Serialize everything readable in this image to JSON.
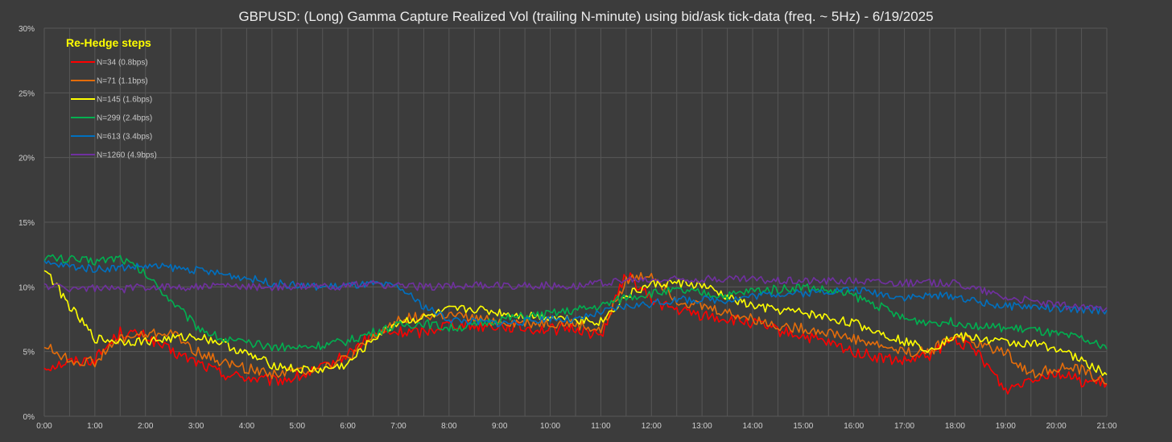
{
  "chart_data": {
    "type": "line",
    "title": "GBPUSD: (Long) Gamma Capture Realized Vol (trailing N-minute) using bid/ask tick-data (freq. ~ 5Hz) - 6/19/2025",
    "x_tick_labels": [
      "0:00",
      "1:00",
      "2:00",
      "3:00",
      "4:00",
      "5:00",
      "6:00",
      "7:00",
      "8:00",
      "9:00",
      "10:00",
      "11:00",
      "12:00",
      "13:00",
      "14:00",
      "15:00",
      "16:00",
      "17:00",
      "18:00",
      "19:00",
      "20:00",
      "21:00"
    ],
    "y_tick_labels": [
      "0%",
      "5%",
      "10%",
      "15%",
      "20%",
      "25%",
      "30%"
    ],
    "xlim": [
      0,
      21
    ],
    "ylim": [
      0,
      30
    ],
    "grid": true,
    "legend_title": "Re-Hedge steps",
    "legend_position": "top-left",
    "x_hours": [
      0,
      0.5,
      1,
      1.5,
      2,
      2.5,
      3,
      3.5,
      4,
      4.5,
      5,
      5.5,
      6,
      6.5,
      7,
      7.5,
      8,
      8.5,
      9,
      9.5,
      10,
      10.5,
      11,
      11.5,
      12,
      12.5,
      13,
      13.5,
      14,
      14.5,
      15,
      15.5,
      16,
      16.5,
      17,
      17.5,
      18,
      18.5,
      19,
      19.5,
      20,
      20.5,
      21
    ],
    "series": [
      {
        "name": "N=34 (0.8bps)",
        "color": "#ff0000",
        "values": [
          3.8,
          4.2,
          4.4,
          6.5,
          6.2,
          5.0,
          4.2,
          3.3,
          3.0,
          2.7,
          3.0,
          3.7,
          4.8,
          6.3,
          6.5,
          6.5,
          7.2,
          7.0,
          7.0,
          6.8,
          6.7,
          6.8,
          6.2,
          11.0,
          9.0,
          8.2,
          7.8,
          7.5,
          7.2,
          6.6,
          6.2,
          5.6,
          5.0,
          4.5,
          4.2,
          4.7,
          6.0,
          4.7,
          2.0,
          3.0,
          3.4,
          2.7,
          2.5
        ]
      },
      {
        "name": "N=71 (1.1bps)",
        "color": "#e46c0a",
        "values": [
          5.5,
          4.3,
          4.2,
          6.0,
          6.3,
          6.5,
          5.0,
          4.2,
          3.7,
          3.3,
          3.5,
          3.8,
          4.5,
          6.0,
          7.5,
          7.7,
          7.8,
          7.5,
          7.3,
          7.2,
          7.2,
          7.1,
          6.6,
          10.5,
          11.0,
          9.0,
          8.5,
          8.0,
          7.5,
          7.0,
          6.8,
          6.5,
          6.0,
          5.5,
          5.0,
          5.0,
          6.3,
          5.5,
          5.0,
          3.2,
          3.8,
          3.6,
          2.5
        ]
      },
      {
        "name": "N=145 (1.6bps)",
        "color": "#ffff00",
        "values": [
          11.5,
          8.5,
          6.0,
          5.8,
          5.8,
          6.0,
          6.2,
          5.7,
          4.8,
          4.0,
          3.6,
          3.6,
          4.0,
          6.0,
          7.3,
          7.6,
          8.2,
          8.3,
          8.0,
          7.8,
          7.7,
          7.5,
          7.3,
          9.3,
          10.2,
          10.3,
          10.1,
          9.2,
          8.5,
          8.2,
          8.0,
          7.6,
          7.2,
          6.5,
          5.8,
          5.2,
          6.2,
          6.0,
          5.7,
          5.6,
          5.3,
          4.3,
          3.2
        ]
      },
      {
        "name": "N=299 (2.4bps)",
        "color": "#00b050",
        "values": [
          12.3,
          12.1,
          12.0,
          12.3,
          11.0,
          9.0,
          7.0,
          6.0,
          5.6,
          5.4,
          5.3,
          5.5,
          5.8,
          6.5,
          7.0,
          7.2,
          6.8,
          7.0,
          7.5,
          7.7,
          7.9,
          8.2,
          8.5,
          9.2,
          9.5,
          9.7,
          9.5,
          9.3,
          9.7,
          9.8,
          10.0,
          9.7,
          9.3,
          8.5,
          7.5,
          7.3,
          7.3,
          7.0,
          6.8,
          6.7,
          6.3,
          6.0,
          5.2
        ]
      },
      {
        "name": "N=613 (3.4bps)",
        "color": "#0070c0",
        "values": [
          11.8,
          11.6,
          11.4,
          11.5,
          11.6,
          11.5,
          11.3,
          11.0,
          10.7,
          10.3,
          10.1,
          10.0,
          10.1,
          10.2,
          10.0,
          8.5,
          7.5,
          7.3,
          7.2,
          7.3,
          7.6,
          7.4,
          8.0,
          8.5,
          8.7,
          9.0,
          9.0,
          9.0,
          9.3,
          9.5,
          9.5,
          9.7,
          9.8,
          9.5,
          9.2,
          9.3,
          9.3,
          8.8,
          8.5,
          8.5,
          8.3,
          8.2,
          8.2
        ]
      },
      {
        "name": "N=1260 (4.9bps)",
        "color": "#7030a0",
        "values": [
          10.1,
          9.9,
          9.9,
          9.8,
          10.0,
          10.0,
          10.0,
          10.1,
          10.0,
          10.0,
          10.0,
          10.0,
          10.1,
          10.2,
          10.1,
          10.0,
          10.1,
          10.1,
          10.1,
          10.1,
          10.1,
          10.1,
          10.3,
          10.5,
          10.5,
          10.6,
          10.6,
          10.6,
          10.6,
          10.5,
          10.5,
          10.5,
          10.5,
          10.4,
          10.3,
          10.3,
          10.3,
          9.8,
          9.2,
          8.9,
          8.6,
          8.4,
          8.4
        ]
      }
    ]
  }
}
